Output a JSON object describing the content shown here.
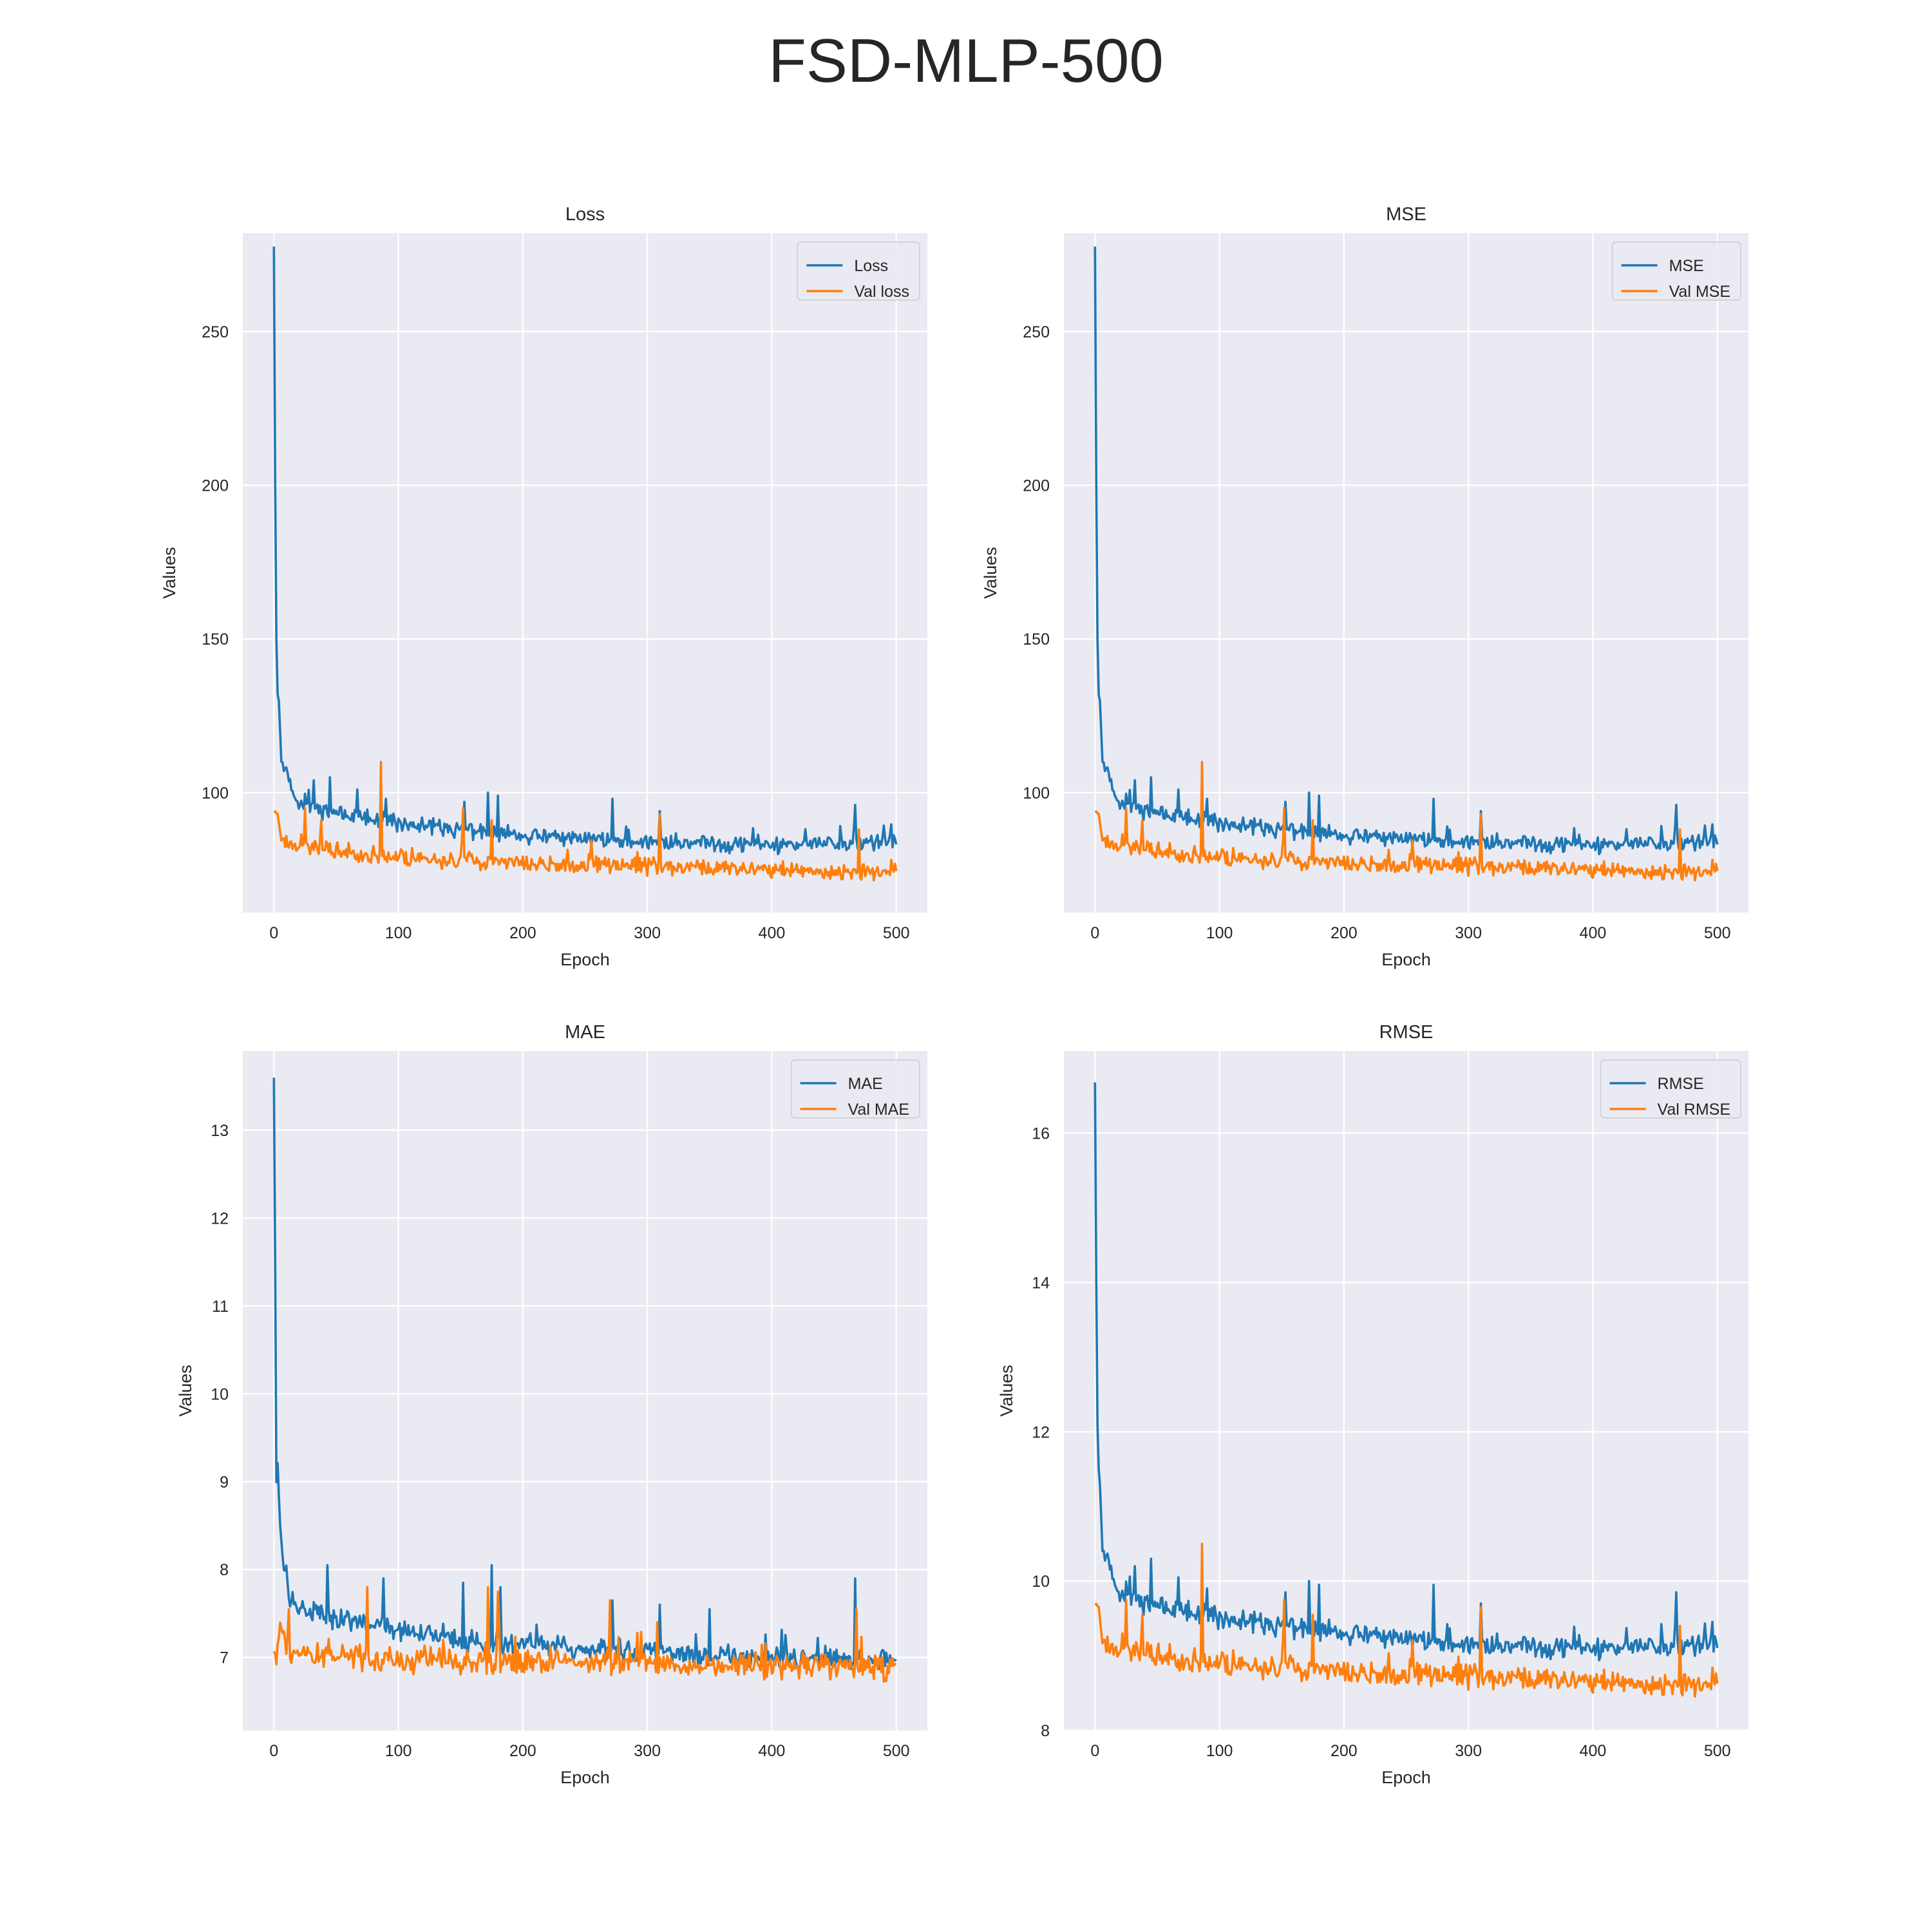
{
  "figure": {
    "title": "FSD-MLP-500"
  },
  "colors": {
    "train": "#1f77b4",
    "val": "#ff7f0e",
    "panel_bg": "#eaeaf2",
    "grid": "#ffffff"
  },
  "chart_data": [
    {
      "type": "line",
      "title": "Loss",
      "xlabel": "Epoch",
      "ylabel": "Values",
      "xlim": [
        -25,
        525
      ],
      "ylim": [
        61,
        282
      ],
      "xticks": [
        0,
        100,
        200,
        300,
        400,
        500
      ],
      "yticks": [
        100,
        150,
        200,
        250
      ],
      "legend_position": "top-right",
      "series": [
        {
          "name": "Loss",
          "color": "#1f77b4",
          "keypoints": [
            [
              0,
              278
            ],
            [
              1,
              200
            ],
            [
              2,
              150
            ],
            [
              3,
              132
            ],
            [
              4,
              130
            ],
            [
              6,
              110
            ],
            [
              10,
              106
            ],
            [
              15,
              100
            ],
            [
              20,
              97
            ],
            [
              30,
              95
            ],
            [
              50,
              93
            ],
            [
              100,
              90
            ],
            [
              150,
              88
            ],
            [
              200,
              86
            ],
            [
              300,
              84
            ],
            [
              400,
              83
            ],
            [
              500,
              84
            ]
          ],
          "noise": 3.2,
          "seed": 11,
          "spikes": [
            [
              32,
              104
            ],
            [
              45,
              105
            ],
            [
              67,
              101
            ],
            [
              90,
              98
            ],
            [
              153,
              97
            ],
            [
              172,
              100
            ],
            [
              180,
              99
            ],
            [
              272,
              98
            ],
            [
              310,
              94
            ],
            [
              467,
              96
            ]
          ]
        },
        {
          "name": "Val loss",
          "color": "#ff7f0e",
          "keypoints": [
            [
              0,
              94
            ],
            [
              3,
              93
            ],
            [
              6,
              85
            ],
            [
              20,
              83
            ],
            [
              50,
              81
            ],
            [
              100,
              79
            ],
            [
              150,
              78
            ],
            [
              200,
              77
            ],
            [
              300,
              76
            ],
            [
              400,
              75
            ],
            [
              500,
              74
            ]
          ],
          "noise": 3.3,
          "seed": 23,
          "spikes": [
            [
              25,
              95
            ],
            [
              38,
              91
            ],
            [
              86,
              110
            ],
            [
              152,
              95
            ],
            [
              175,
              91
            ],
            [
              310,
              93
            ],
            [
              470,
              88
            ]
          ]
        }
      ]
    },
    {
      "type": "line",
      "title": "MSE",
      "xlabel": "Epoch",
      "ylabel": "Values",
      "xlim": [
        -25,
        525
      ],
      "ylim": [
        61,
        282
      ],
      "xticks": [
        0,
        100,
        200,
        300,
        400,
        500
      ],
      "yticks": [
        100,
        150,
        200,
        250
      ],
      "legend_position": "top-right",
      "series": [
        {
          "name": "MSE",
          "color": "#1f77b4",
          "keypoints": [
            [
              0,
              278
            ],
            [
              1,
              200
            ],
            [
              2,
              150
            ],
            [
              3,
              132
            ],
            [
              4,
              130
            ],
            [
              6,
              110
            ],
            [
              10,
              106
            ],
            [
              15,
              100
            ],
            [
              20,
              97
            ],
            [
              30,
              95
            ],
            [
              50,
              93
            ],
            [
              100,
              90
            ],
            [
              150,
              88
            ],
            [
              200,
              86
            ],
            [
              300,
              84
            ],
            [
              400,
              83
            ],
            [
              500,
              84
            ]
          ],
          "noise": 3.2,
          "seed": 11,
          "spikes": [
            [
              32,
              104
            ],
            [
              45,
              105
            ],
            [
              67,
              101
            ],
            [
              90,
              98
            ],
            [
              153,
              97
            ],
            [
              172,
              100
            ],
            [
              180,
              99
            ],
            [
              272,
              98
            ],
            [
              310,
              94
            ],
            [
              467,
              96
            ]
          ]
        },
        {
          "name": "Val MSE",
          "color": "#ff7f0e",
          "keypoints": [
            [
              0,
              94
            ],
            [
              3,
              93
            ],
            [
              6,
              85
            ],
            [
              20,
              83
            ],
            [
              50,
              81
            ],
            [
              100,
              79
            ],
            [
              150,
              78
            ],
            [
              200,
              77
            ],
            [
              300,
              76
            ],
            [
              400,
              75
            ],
            [
              500,
              74
            ]
          ],
          "noise": 3.3,
          "seed": 23,
          "spikes": [
            [
              25,
              95
            ],
            [
              38,
              91
            ],
            [
              86,
              110
            ],
            [
              152,
              95
            ],
            [
              175,
              91
            ],
            [
              310,
              93
            ],
            [
              470,
              88
            ]
          ]
        }
      ]
    },
    {
      "type": "line",
      "title": "MAE",
      "xlabel": "Epoch",
      "ylabel": "Values",
      "xlim": [
        -25,
        525
      ],
      "ylim": [
        6.17,
        13.9
      ],
      "xticks": [
        0,
        100,
        200,
        300,
        400,
        500
      ],
      "yticks": [
        7,
        8,
        9,
        10,
        11,
        12,
        13
      ],
      "legend_position": "top-right",
      "series": [
        {
          "name": "MAE",
          "color": "#1f77b4",
          "keypoints": [
            [
              0,
              13.6
            ],
            [
              1,
              11.5
            ],
            [
              2,
              9.0
            ],
            [
              3,
              9.2
            ],
            [
              5,
              8.5
            ],
            [
              8,
              8.0
            ],
            [
              12,
              7.7
            ],
            [
              20,
              7.55
            ],
            [
              50,
              7.45
            ],
            [
              100,
              7.3
            ],
            [
              150,
              7.2
            ],
            [
              200,
              7.15
            ],
            [
              300,
              7.05
            ],
            [
              400,
              7.0
            ],
            [
              500,
              7.0
            ]
          ],
          "noise": 0.15,
          "seed": 37,
          "spikes": [
            [
              43,
              8.05
            ],
            [
              88,
              7.9
            ],
            [
              152,
              7.85
            ],
            [
              175,
              8.05
            ],
            [
              182,
              7.8
            ],
            [
              272,
              7.65
            ],
            [
              310,
              7.6
            ],
            [
              350,
              7.55
            ],
            [
              467,
              7.9
            ]
          ]
        },
        {
          "name": "Val MAE",
          "color": "#ff7f0e",
          "keypoints": [
            [
              0,
              7.1
            ],
            [
              2,
              6.95
            ],
            [
              5,
              7.4
            ],
            [
              10,
              7.1
            ],
            [
              20,
              7.05
            ],
            [
              50,
              6.98
            ],
            [
              100,
              6.97
            ],
            [
              200,
              6.95
            ],
            [
              300,
              6.93
            ],
            [
              400,
              6.9
            ],
            [
              500,
              6.88
            ]
          ],
          "noise": 0.18,
          "seed": 53,
          "spikes": [
            [
              12,
              7.55
            ],
            [
              75,
              7.8
            ],
            [
              172,
              7.8
            ],
            [
              180,
              7.75
            ],
            [
              270,
              7.65
            ],
            [
              308,
              7.4
            ],
            [
              468,
              7.55
            ]
          ]
        }
      ]
    },
    {
      "type": "line",
      "title": "RMSE",
      "xlabel": "Epoch",
      "ylabel": "Values",
      "xlim": [
        -25,
        525
      ],
      "ylim": [
        8.0,
        17.1
      ],
      "xticks": [
        0,
        100,
        200,
        300,
        400,
        500
      ],
      "yticks": [
        8,
        10,
        12,
        14,
        16
      ],
      "legend_position": "top-right",
      "series": [
        {
          "name": "RMSE",
          "color": "#1f77b4",
          "keypoints": [
            [
              0,
              16.7
            ],
            [
              1,
              14.0
            ],
            [
              2,
              12.1
            ],
            [
              3,
              11.5
            ],
            [
              4,
              11.3
            ],
            [
              6,
              10.4
            ],
            [
              10,
              10.25
            ],
            [
              15,
              10.0
            ],
            [
              20,
              9.85
            ],
            [
              30,
              9.75
            ],
            [
              50,
              9.65
            ],
            [
              100,
              9.5
            ],
            [
              150,
              9.4
            ],
            [
              200,
              9.3
            ],
            [
              300,
              9.15
            ],
            [
              400,
              9.1
            ],
            [
              500,
              9.15
            ]
          ],
          "noise": 0.17,
          "seed": 11,
          "spikes": [
            [
              32,
              10.2
            ],
            [
              45,
              10.3
            ],
            [
              67,
              10.05
            ],
            [
              90,
              9.9
            ],
            [
              153,
              9.85
            ],
            [
              172,
              10.0
            ],
            [
              180,
              9.95
            ],
            [
              272,
              9.95
            ],
            [
              310,
              9.7
            ],
            [
              467,
              9.85
            ]
          ]
        },
        {
          "name": "Val RMSE",
          "color": "#ff7f0e",
          "keypoints": [
            [
              0,
              9.7
            ],
            [
              3,
              9.65
            ],
            [
              6,
              9.2
            ],
            [
              20,
              9.1
            ],
            [
              50,
              9.0
            ],
            [
              100,
              8.9
            ],
            [
              150,
              8.85
            ],
            [
              200,
              8.78
            ],
            [
              300,
              8.72
            ],
            [
              400,
              8.66
            ],
            [
              500,
              8.6
            ]
          ],
          "noise": 0.19,
          "seed": 23,
          "spikes": [
            [
              25,
              9.75
            ],
            [
              38,
              9.55
            ],
            [
              86,
              10.5
            ],
            [
              152,
              9.75
            ],
            [
              175,
              9.55
            ],
            [
              310,
              9.65
            ],
            [
              470,
              9.4
            ]
          ]
        }
      ]
    }
  ]
}
